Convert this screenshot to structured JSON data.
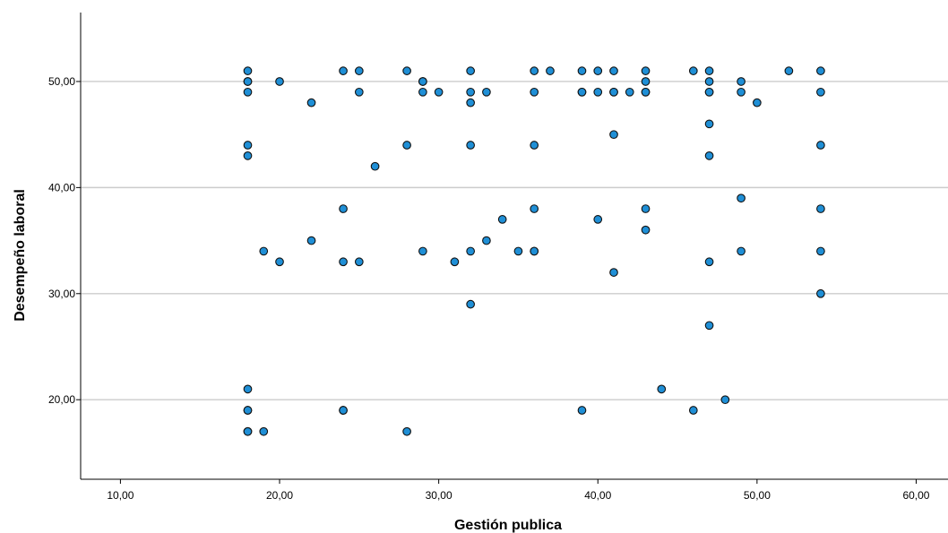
{
  "chart_data": {
    "type": "scatter",
    "title": "",
    "xlabel": "Gestión publica",
    "ylabel": "Desempeño laboral",
    "xlim": [
      7.5,
      62
    ],
    "ylim": [
      12.5,
      56.5
    ],
    "xticks": [
      10,
      20,
      30,
      40,
      50,
      60
    ],
    "xtick_labels": [
      "10,00",
      "20,00",
      "30,00",
      "40,00",
      "50,00",
      "60,00"
    ],
    "yticks": [
      20,
      30,
      40,
      50
    ],
    "ytick_labels": [
      "20,00",
      "30,00",
      "40,00",
      "50,00"
    ],
    "grid": "horizontal",
    "marker_color": "#1f8fd6",
    "x": [
      18,
      18,
      18,
      18,
      18,
      18,
      18,
      18,
      20,
      24,
      24,
      25,
      25,
      22,
      28,
      28,
      26,
      29,
      29,
      29,
      30,
      32,
      32,
      32,
      32,
      33,
      36,
      36,
      36,
      37,
      39,
      39,
      39,
      40,
      40,
      41,
      41,
      41,
      41,
      42,
      43,
      43,
      43,
      43,
      46,
      47,
      47,
      47,
      47,
      47,
      47,
      49,
      49,
      50,
      52,
      54,
      54,
      54,
      24,
      22,
      19,
      20,
      24,
      25,
      29,
      31,
      32,
      33,
      34,
      35,
      36,
      36,
      36,
      40,
      41,
      43,
      43,
      47,
      49,
      49,
      54,
      54,
      54,
      32,
      47,
      18,
      18,
      18,
      19,
      24,
      28,
      39,
      44,
      46,
      48
    ],
    "y": [
      51,
      50,
      50,
      49,
      44,
      43,
      21,
      19,
      50,
      51,
      33,
      51,
      49,
      48,
      51,
      44,
      42,
      50,
      50,
      49,
      49,
      51,
      49,
      48,
      44,
      49,
      51,
      49,
      44,
      51,
      51,
      49,
      49,
      51,
      49,
      51,
      49,
      49,
      45,
      49,
      51,
      50,
      49,
      49,
      51,
      51,
      50,
      49,
      49,
      46,
      43,
      50,
      49,
      48,
      51,
      51,
      49,
      44,
      38,
      35,
      34,
      33,
      19,
      33,
      34,
      33,
      34,
      35,
      37,
      34,
      38,
      34,
      34,
      37,
      32,
      38,
      36,
      33,
      39,
      34,
      38,
      34,
      30,
      29,
      27,
      17,
      17,
      19,
      17,
      19,
      17,
      19,
      21,
      19,
      20
    ]
  }
}
